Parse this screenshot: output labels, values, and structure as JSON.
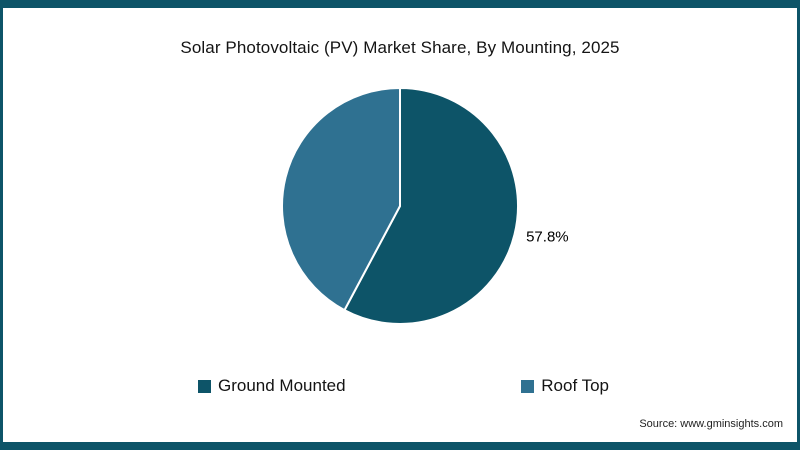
{
  "frame": {
    "border_color": "#0d5468"
  },
  "source": "Source: www.gminsights.com",
  "chart_data": {
    "type": "pie",
    "title": "Solar Photovoltaic (PV) Market Share, By Mounting, 2025",
    "labels": [
      "Ground Mounted",
      "Roof Top"
    ],
    "values": [
      57.8,
      42.2
    ],
    "colors": [
      "#0d5468",
      "#2f7191"
    ],
    "data_labels": [
      "57.8%",
      ""
    ],
    "start_angle_deg": 0,
    "direction": "clockwise",
    "slice_border_color": "#ffffff",
    "legend_position": "bottom"
  }
}
